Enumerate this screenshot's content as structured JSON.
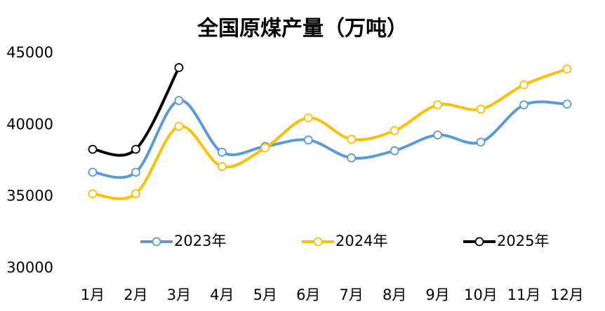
{
  "chart_data": {
    "type": "line",
    "title": "全国原煤产量（万吨）",
    "categories": [
      "1月",
      "2月",
      "3月",
      "4月",
      "5月",
      "6月",
      "7月",
      "8月",
      "9月",
      "10月",
      "11月",
      "12月"
    ],
    "series": [
      {
        "name": "2023年",
        "color": "#5b9bd5",
        "values": [
          36700,
          36700,
          41700,
          38100,
          38500,
          38950,
          37700,
          38200,
          39300,
          38800,
          41400,
          41450
        ]
      },
      {
        "name": "2024年",
        "color": "#ffc000",
        "values": [
          35200,
          35200,
          39900,
          37100,
          38400,
          40500,
          39000,
          39600,
          41400,
          41100,
          42800,
          43900
        ]
      },
      {
        "name": "2025年",
        "color": "#000000",
        "values": [
          38300,
          38300,
          44000,
          null,
          null,
          null,
          null,
          null,
          null,
          null,
          null,
          null
        ]
      }
    ],
    "ylim": [
      30000,
      45000
    ],
    "yticks": [
      30000,
      35000,
      40000,
      45000
    ],
    "grid": false,
    "legend": "bottom"
  }
}
